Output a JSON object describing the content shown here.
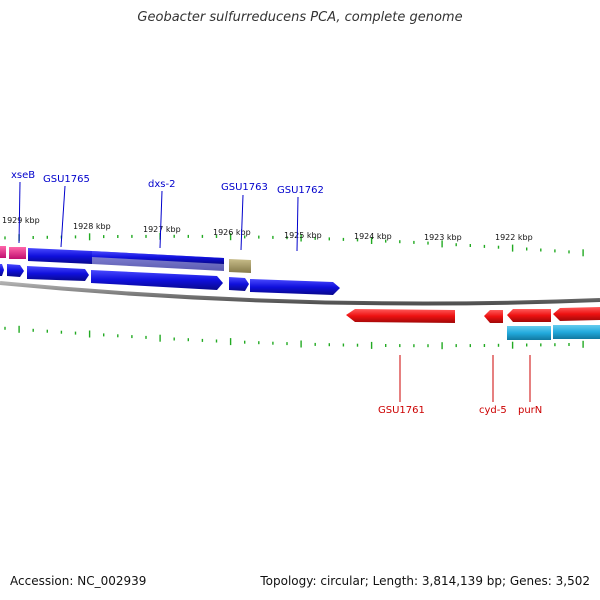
{
  "title": "Geobacter sulfurreducens PCA, complete genome",
  "footer": {
    "accession": "Accession: NC_002939",
    "summary": "Topology: circular; Length: 3,814,139 bp; Genes: 3,502"
  },
  "colors": {
    "forward_gene": "#1010dd",
    "reverse_gene": "#ee1111",
    "forward_label": "#0000cc",
    "reverse_label": "#cc0000",
    "pink_feature": "#ee2288",
    "olive_feature": "#a89d6a",
    "light_blue_feature": "#22aadd",
    "tick": "#22aa22",
    "backbone": "#808080"
  },
  "scale": {
    "ticks": [
      "1929 kbp",
      "1928 kbp",
      "1927 kbp",
      "1926 kbp",
      "1925 kbp",
      "1924 kbp",
      "1923 kbp",
      "1922 kbp"
    ]
  },
  "forward_genes": [
    {
      "label": "xseB"
    },
    {
      "label": "GSU1765"
    },
    {
      "label": "dxs-2"
    },
    {
      "label": "GSU1763"
    },
    {
      "label": "GSU1762"
    }
  ],
  "reverse_genes": [
    {
      "label": "GSU1761"
    },
    {
      "label": "cyd-5"
    },
    {
      "label": "purN"
    }
  ]
}
